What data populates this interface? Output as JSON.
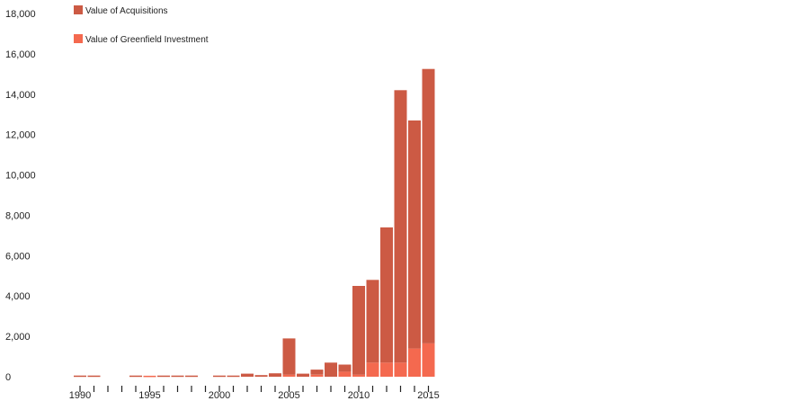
{
  "chart_data": {
    "type": "bar",
    "stacked": true,
    "x": [
      1990,
      1991,
      1992,
      1993,
      1994,
      1995,
      1996,
      1997,
      1998,
      1999,
      2000,
      2001,
      2002,
      2003,
      2004,
      2005,
      2006,
      2007,
      2008,
      2009,
      2010,
      2011,
      2012,
      2013,
      2014,
      2015
    ],
    "x_tick_labels": [
      "1990",
      "1995",
      "2000",
      "2005",
      "2010",
      "2015"
    ],
    "y_tick_labels": [
      "0",
      "2,000",
      "4,000",
      "6,000",
      "8,000",
      "10,000",
      "12,000",
      "14,000",
      "16,000",
      "18,000"
    ],
    "ylim": [
      0,
      18000
    ],
    "grid": false,
    "legend_position": "top-left",
    "series": [
      {
        "name": "Value of Greenfield Investment",
        "color": "#f4694f",
        "values": [
          0,
          0,
          0,
          0,
          0,
          50,
          0,
          0,
          0,
          0,
          0,
          0,
          0,
          0,
          0,
          100,
          0,
          100,
          0,
          250,
          100,
          700,
          700,
          700,
          1400,
          1650
        ]
      },
      {
        "name": "Value of Acquisitions",
        "color": "#cc5a44",
        "values": [
          60,
          60,
          0,
          0,
          60,
          0,
          60,
          60,
          60,
          0,
          60,
          60,
          150,
          80,
          170,
          1800,
          150,
          250,
          700,
          350,
          4400,
          4100,
          6700,
          13500,
          11300,
          13600
        ]
      }
    ],
    "legend_order": [
      "Value of Acquisitions",
      "Value of Greenfield Investment"
    ]
  }
}
